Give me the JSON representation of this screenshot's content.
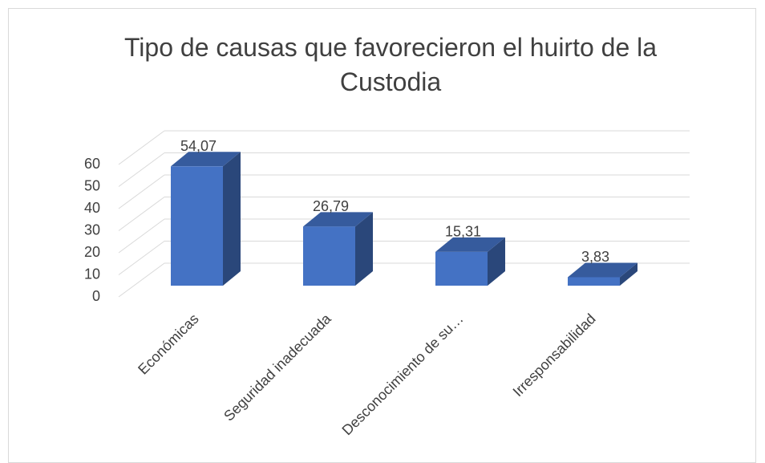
{
  "chart_data": {
    "type": "bar3d",
    "title": "Tipo de causas que favorecieron el huirto de la Custodia",
    "categories": [
      "Económicas",
      "Seguridad inadecuada",
      "Desconocimiento de su…",
      "Irresponsabilidad"
    ],
    "values": [
      54.07,
      26.79,
      15.31,
      3.83
    ],
    "value_labels": [
      "54,07",
      "26,79",
      "15,31",
      "3,83"
    ],
    "color": "#4472c4",
    "ylim": [
      0,
      60
    ],
    "yticks": [
      0,
      10,
      20,
      30,
      40,
      50,
      60
    ],
    "grid": true
  }
}
